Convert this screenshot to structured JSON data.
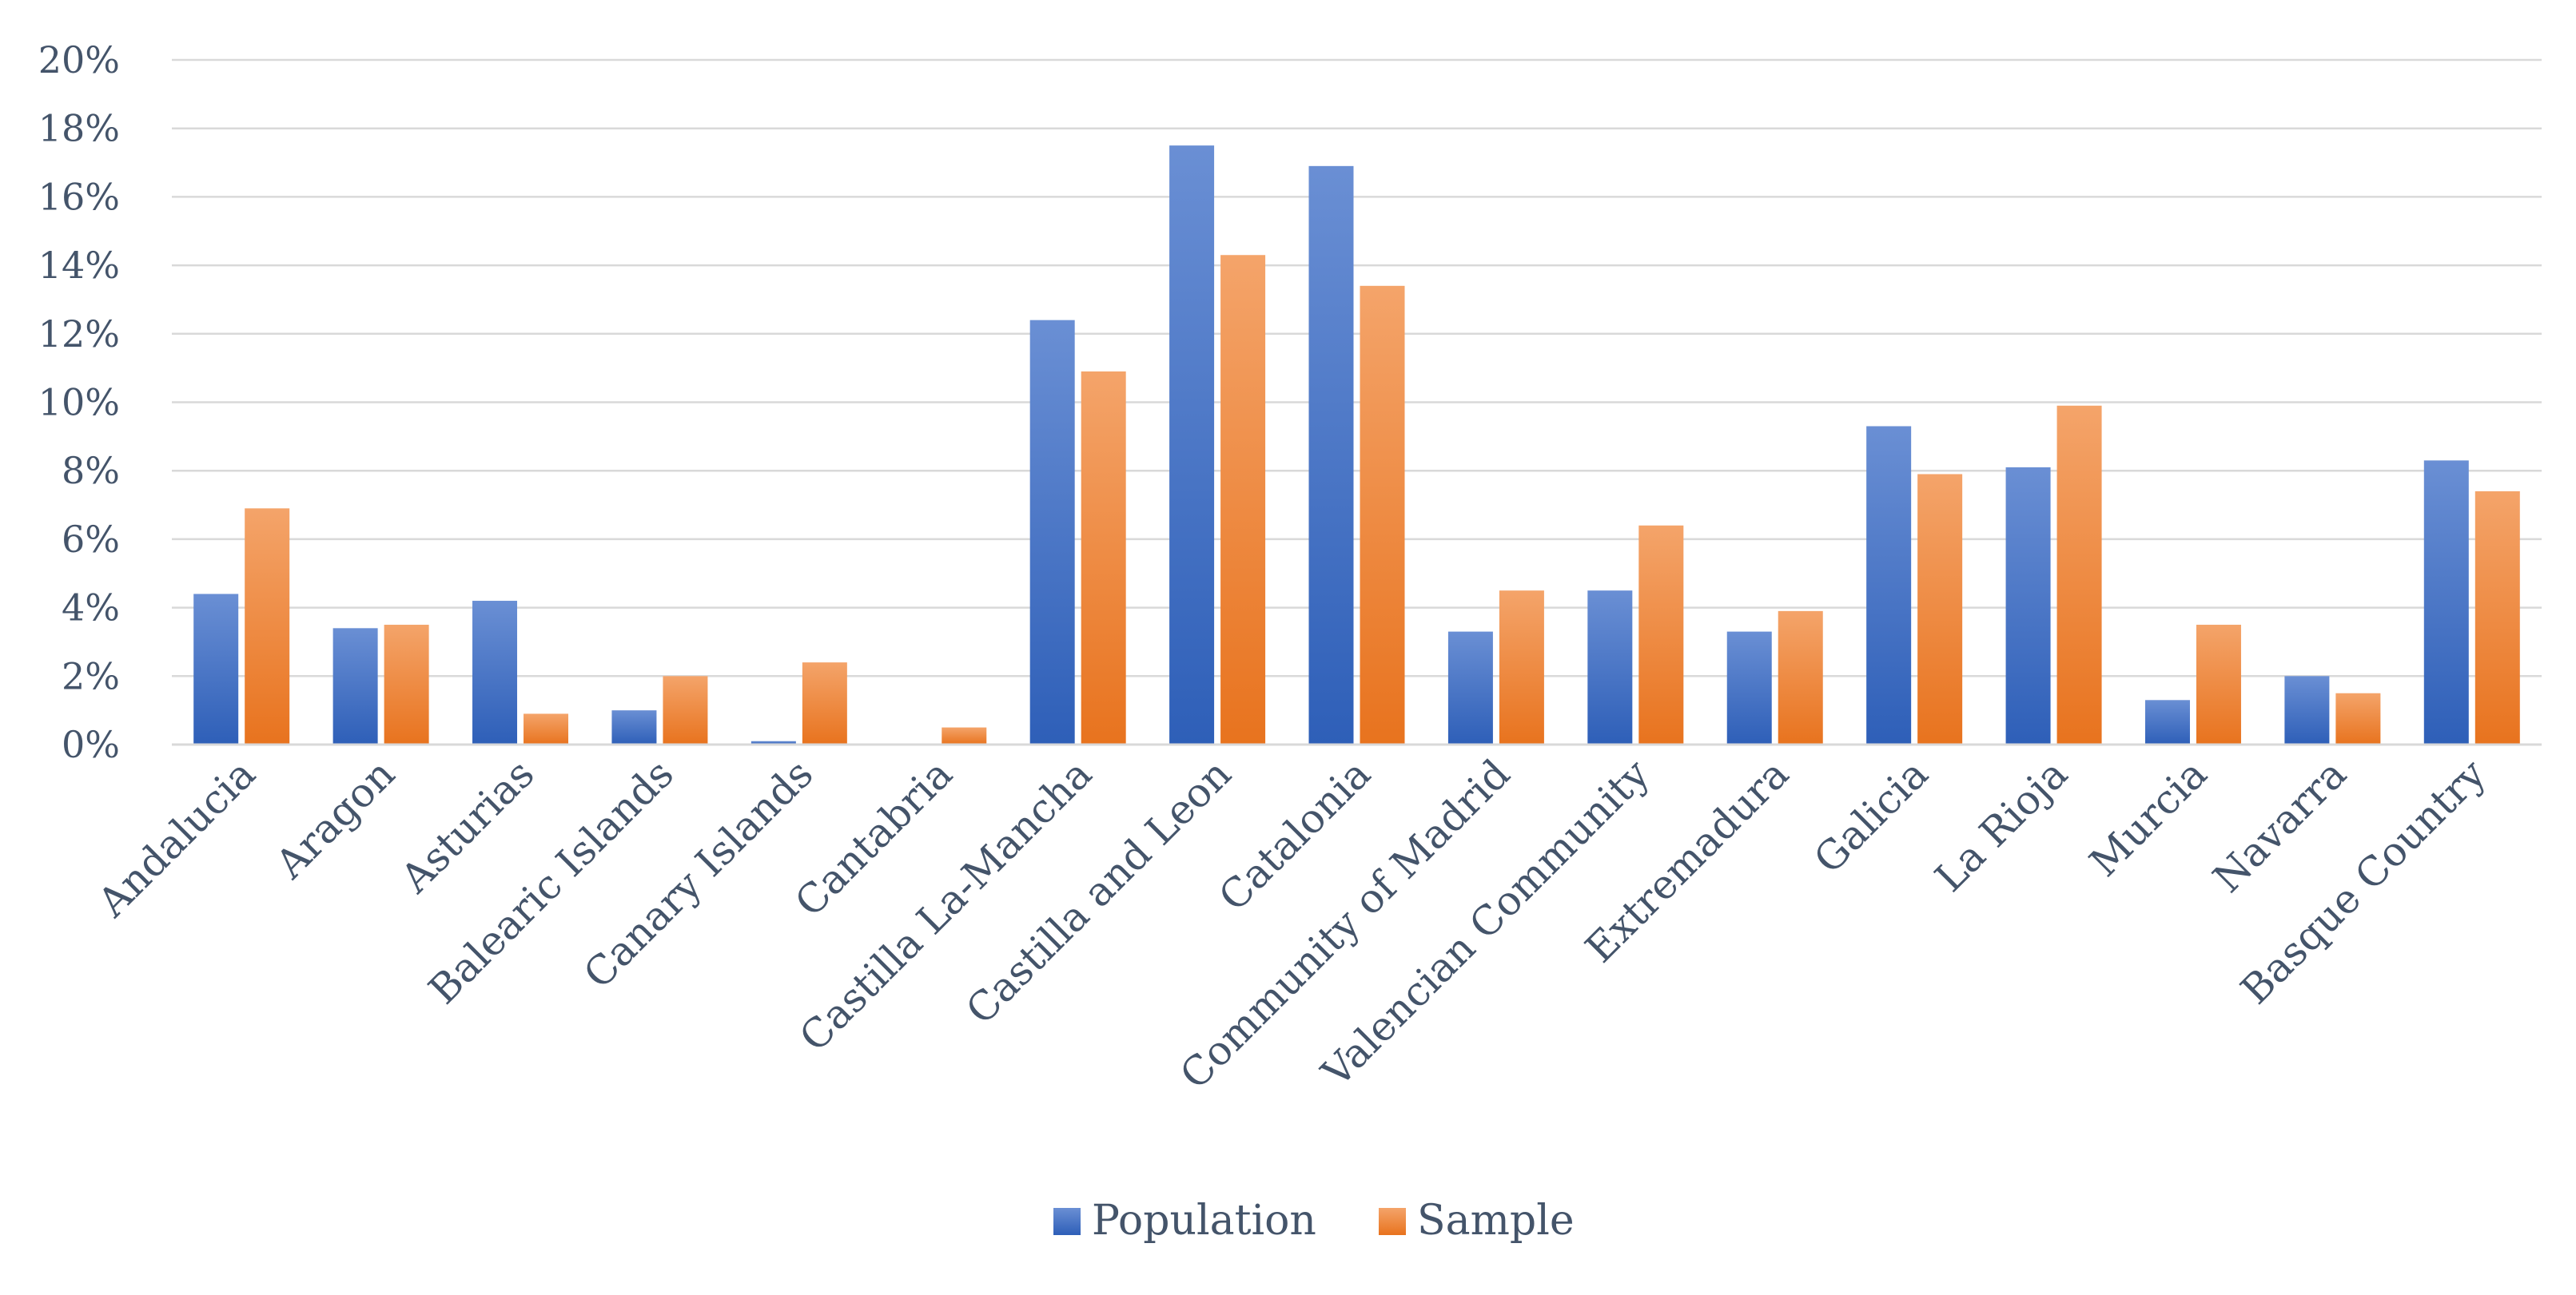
{
  "chart_data": {
    "type": "bar",
    "title": "",
    "xlabel": "",
    "ylabel": "",
    "ylim": [
      0,
      20
    ],
    "ytick_step": 2,
    "ytick_suffix": "%",
    "grid": true,
    "legend_position": "bottom",
    "categories": [
      "Andalucia",
      "Aragon",
      "Asturias",
      "Balearic Islands",
      "Canary Islands",
      "Cantabria",
      "Castilla La-Mancha",
      "Castilla and Leon",
      "Catalonia",
      "Community of Madrid",
      "Valencian Community",
      "Extremadura",
      "Galicia",
      "La Rioja",
      "Murcia",
      "Navarra",
      "Basque Country"
    ],
    "series": [
      {
        "name": "Population",
        "color_top": "#6A8FD4",
        "color_bottom": "#2E5FB8",
        "values": [
          4.4,
          3.4,
          4.2,
          1.0,
          0.1,
          0.0,
          12.4,
          17.5,
          16.9,
          3.3,
          4.5,
          3.3,
          9.3,
          8.1,
          1.3,
          2.0,
          8.3
        ]
      },
      {
        "name": "Sample",
        "color_top": "#F4A46A",
        "color_bottom": "#E8731E",
        "values": [
          6.9,
          3.5,
          0.9,
          2.0,
          2.4,
          0.5,
          10.9,
          14.3,
          13.4,
          4.5,
          6.4,
          3.9,
          7.9,
          9.9,
          3.5,
          1.5,
          7.4
        ]
      }
    ]
  }
}
